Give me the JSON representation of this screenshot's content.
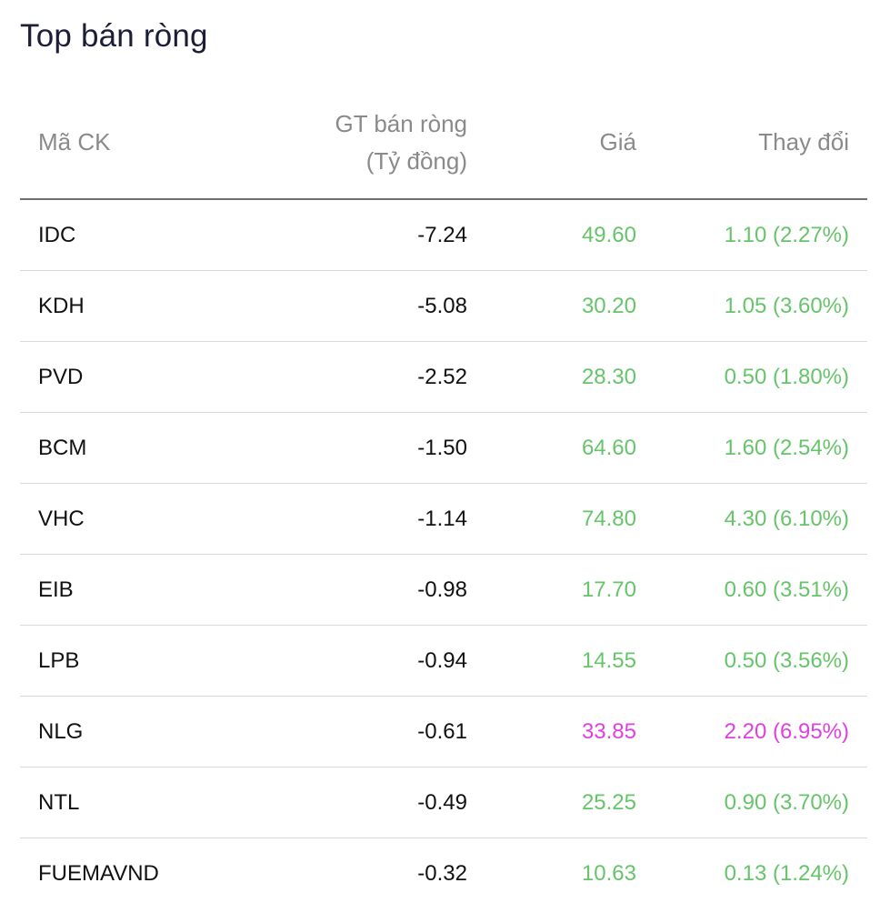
{
  "title": "Top bán ròng",
  "headers": {
    "code": "Mã CK",
    "net_line1": "GT bán ròng",
    "net_line2": "(Tỷ đồng)",
    "price": "Giá",
    "change": "Thay đổi"
  },
  "colors": {
    "up": "#66c46a",
    "ceiling": "#e040e0"
  },
  "rows": [
    {
      "code": "IDC",
      "net": "-7.24",
      "price": "49.60",
      "change": "1.10 (2.27%)",
      "status": "up"
    },
    {
      "code": "KDH",
      "net": "-5.08",
      "price": "30.20",
      "change": "1.05 (3.60%)",
      "status": "up"
    },
    {
      "code": "PVD",
      "net": "-2.52",
      "price": "28.30",
      "change": "0.50 (1.80%)",
      "status": "up"
    },
    {
      "code": "BCM",
      "net": "-1.50",
      "price": "64.60",
      "change": "1.60 (2.54%)",
      "status": "up"
    },
    {
      "code": "VHC",
      "net": "-1.14",
      "price": "74.80",
      "change": "4.30 (6.10%)",
      "status": "up"
    },
    {
      "code": "EIB",
      "net": "-0.98",
      "price": "17.70",
      "change": "0.60 (3.51%)",
      "status": "up"
    },
    {
      "code": "LPB",
      "net": "-0.94",
      "price": "14.55",
      "change": "0.50 (3.56%)",
      "status": "up"
    },
    {
      "code": "NLG",
      "net": "-0.61",
      "price": "33.85",
      "change": "2.20 (6.95%)",
      "status": "ceiling"
    },
    {
      "code": "NTL",
      "net": "-0.49",
      "price": "25.25",
      "change": "0.90 (3.70%)",
      "status": "up"
    },
    {
      "code": "FUEMAVND",
      "net": "-0.32",
      "price": "10.63",
      "change": "0.13 (1.24%)",
      "status": "up"
    }
  ]
}
